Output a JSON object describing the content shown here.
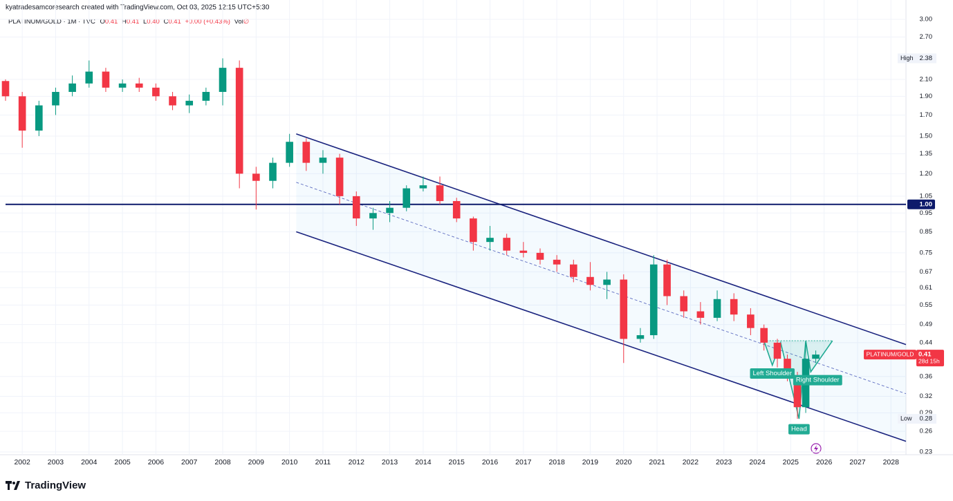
{
  "chart_data": {
    "type": "candlestick",
    "credit": "kyatradesamcoresearch created with TradingView.com, Oct 03, 2025 12:15 UTC+5:30",
    "symbol_line": "PLATINUM/GOLD · 1M · TVC",
    "ohlc": [
      {
        "k": "O",
        "v": "0.41"
      },
      {
        "k": "H",
        "v": "0.41"
      },
      {
        "k": "L",
        "v": "0.40"
      },
      {
        "k": "C",
        "v": "0.41"
      }
    ],
    "change": "+0.00 (+0.43%)",
    "vol": {
      "k": "Vol",
      "v": "∅"
    },
    "logo": "TradingView",
    "log_scale": true,
    "up_color": "#089981",
    "down_color": "#f23645",
    "xlim": [
      2001.5,
      2028.45
    ],
    "ylim": [
      0.23,
      3.0
    ],
    "xticks": [
      2002,
      2003,
      2004,
      2005,
      2006,
      2007,
      2008,
      2009,
      2010,
      2011,
      2012,
      2013,
      2014,
      2015,
      2016,
      2017,
      2018,
      2019,
      2020,
      2021,
      2022,
      2023,
      2024,
      2025,
      2026,
      2027,
      2028
    ],
    "yticks": [
      {
        "value": 3.0,
        "label": "3.00"
      },
      {
        "value": 2.7,
        "label": "2.70"
      },
      {
        "value": 2.1,
        "label": "2.10"
      },
      {
        "value": 1.9,
        "label": "1.90"
      },
      {
        "value": 1.7,
        "label": "1.70"
      },
      {
        "value": 1.5,
        "label": "1.50"
      },
      1.35,
      {
        "value": 1.2,
        "label": "1.20"
      },
      1.05,
      0.95,
      0.85,
      0.75,
      0.67,
      0.61,
      0.55,
      0.49,
      0.44,
      0.36,
      0.32,
      0.29,
      0.26,
      0.23
    ],
    "x": [
      2001.5,
      2002.0,
      2002.5,
      2003.0,
      2003.5,
      2004.0,
      2004.5,
      2005.0,
      2005.5,
      2006.0,
      2006.5,
      2007.0,
      2007.5,
      2008.0,
      2008.5,
      2009.0,
      2009.5,
      2010.0,
      2010.5,
      2011.0,
      2011.5,
      2012.0,
      2012.5,
      2013.0,
      2013.5,
      2014.0,
      2014.5,
      2015.0,
      2015.5,
      2016.0,
      2016.5,
      2017.0,
      2017.5,
      2018.0,
      2018.5,
      2019.0,
      2019.5,
      2020.0,
      2020.5,
      2020.9,
      2021.3,
      2021.8,
      2022.3,
      2022.8,
      2023.3,
      2023.8,
      2024.2,
      2024.6,
      2024.9,
      2025.2,
      2025.45,
      2025.75
    ],
    "open": [
      2.08,
      1.9,
      1.55,
      1.8,
      1.95,
      2.05,
      2.2,
      2.0,
      2.05,
      2.0,
      1.9,
      1.8,
      1.85,
      1.95,
      2.25,
      1.2,
      1.15,
      1.28,
      1.45,
      1.28,
      1.32,
      1.05,
      0.92,
      0.95,
      0.98,
      1.1,
      1.12,
      1.02,
      0.92,
      0.8,
      0.82,
      0.76,
      0.75,
      0.72,
      0.7,
      0.65,
      0.62,
      0.64,
      0.45,
      0.46,
      0.7,
      0.58,
      0.53,
      0.51,
      0.57,
      0.52,
      0.48,
      0.44,
      0.4,
      0.36,
      0.3,
      0.4
    ],
    "high": [
      2.1,
      1.95,
      1.85,
      2.0,
      2.15,
      2.35,
      2.25,
      2.1,
      2.12,
      2.05,
      1.95,
      1.92,
      2.0,
      2.38,
      2.35,
      1.25,
      1.32,
      1.52,
      1.48,
      1.38,
      1.35,
      1.08,
      0.98,
      1.02,
      1.12,
      1.18,
      1.18,
      1.04,
      0.93,
      0.88,
      0.84,
      0.8,
      0.77,
      0.74,
      0.72,
      0.71,
      0.67,
      0.66,
      0.48,
      0.74,
      0.72,
      0.6,
      0.56,
      0.6,
      0.59,
      0.54,
      0.49,
      0.45,
      0.41,
      0.37,
      0.44,
      0.42
    ],
    "low": [
      1.85,
      1.4,
      1.5,
      1.7,
      1.9,
      2.0,
      1.95,
      1.95,
      1.95,
      1.85,
      1.75,
      1.72,
      1.8,
      1.8,
      1.1,
      0.97,
      1.1,
      1.25,
      1.22,
      1.2,
      1.0,
      0.88,
      0.86,
      0.9,
      0.96,
      1.08,
      1.0,
      0.9,
      0.76,
      0.76,
      0.74,
      0.73,
      0.7,
      0.67,
      0.63,
      0.6,
      0.57,
      0.39,
      0.44,
      0.45,
      0.55,
      0.51,
      0.49,
      0.5,
      0.5,
      0.46,
      0.42,
      0.38,
      0.35,
      0.28,
      0.29,
      0.39
    ],
    "close": [
      1.9,
      1.55,
      1.8,
      1.95,
      2.05,
      2.2,
      2.0,
      2.05,
      2.0,
      1.9,
      1.8,
      1.85,
      1.95,
      2.25,
      1.2,
      1.15,
      1.28,
      1.45,
      1.28,
      1.32,
      1.05,
      0.92,
      0.95,
      0.98,
      1.1,
      1.12,
      1.02,
      0.92,
      0.8,
      0.82,
      0.76,
      0.75,
      0.72,
      0.7,
      0.65,
      0.62,
      0.64,
      0.45,
      0.46,
      0.7,
      0.58,
      0.53,
      0.51,
      0.57,
      0.52,
      0.48,
      0.44,
      0.4,
      0.36,
      0.3,
      0.4,
      0.41
    ],
    "hline": {
      "value": 1,
      "label": "1.00",
      "color": "#0d1a6b"
    },
    "channel": {
      "color": "#1a237e",
      "upper": {
        "x": [
          2010.2,
          2028.45
        ],
        "y": [
          1.52,
          0.435
        ]
      },
      "lower": {
        "x": [
          2010.2,
          2028.45
        ],
        "y": [
          0.85,
          0.245
        ]
      },
      "mid": {
        "x": [
          2010.2,
          2028.45
        ],
        "y": [
          1.14,
          0.325
        ]
      }
    },
    "pattern": {
      "color": "#22ab94",
      "points": [
        {
          "x": 2024.2,
          "y": 0.445
        },
        {
          "x": 2024.45,
          "y": 0.385,
          "label": "Left Shoulder"
        },
        {
          "x": 2024.7,
          "y": 0.44
        },
        {
          "x": 2025.25,
          "y": 0.28,
          "label": "Head"
        },
        {
          "x": 2025.45,
          "y": 0.445
        },
        {
          "x": 2025.6,
          "y": 0.37,
          "label": "Right Shoulder"
        },
        {
          "x": 2026.25,
          "y": 0.445
        }
      ]
    },
    "high_mark": {
      "label": "High",
      "value": 2.38
    },
    "low_mark": {
      "label": "Low",
      "value": 0.28
    },
    "last": {
      "symbol": "PLATINUM/GOLD",
      "value": 0.41,
      "countdown": "28d 15h",
      "color": "#f23645"
    }
  }
}
